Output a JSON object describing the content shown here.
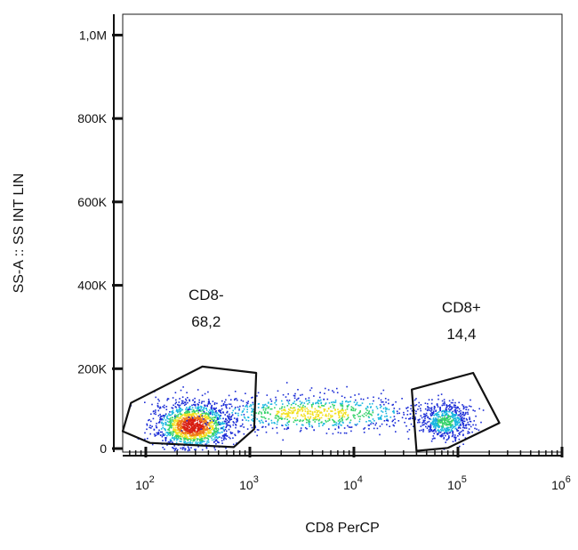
{
  "chart_data": {
    "type": "scatter",
    "title": "",
    "xlabel": "CD8 PerCP",
    "ylabel": "SS-A :: SS INT LIN",
    "x_scale": "log",
    "xlim": [
      60,
      1000000
    ],
    "ylim": [
      0,
      1050000
    ],
    "x_ticks": [
      {
        "value": 100,
        "label": "10",
        "exp": "2"
      },
      {
        "value": 1000,
        "label": "10",
        "exp": "3"
      },
      {
        "value": 10000,
        "label": "10",
        "exp": "4"
      },
      {
        "value": 100000,
        "label": "10",
        "exp": "5"
      },
      {
        "value": 1000000,
        "label": "10",
        "exp": "6"
      }
    ],
    "y_ticks": [
      {
        "value": 0,
        "label": "0"
      },
      {
        "value": 200000,
        "label": "200K"
      },
      {
        "value": 400000,
        "label": "400K"
      },
      {
        "value": 600000,
        "label": "600K"
      },
      {
        "value": 800000,
        "label": "800K"
      },
      {
        "value": 1000000,
        "label": "1,0M"
      }
    ],
    "grid": false,
    "legend": "none",
    "density_colors": [
      "#1a2bd6",
      "#19b7e0",
      "#35d26a",
      "#f2e01e",
      "#f07a18",
      "#d81e12"
    ],
    "populations": [
      {
        "center_x": 280,
        "center_y": 65000,
        "spread_log_x": 0.18,
        "spread_y": 28000,
        "count": 1500
      },
      {
        "center_x": 4000,
        "center_y": 95000,
        "spread_log_x": 0.55,
        "spread_y": 22000,
        "count": 900
      },
      {
        "center_x": 75000,
        "center_y": 75000,
        "spread_log_x": 0.12,
        "spread_y": 22000,
        "count": 600
      }
    ],
    "gates": [
      {
        "name": "CD8-",
        "value": "68,2",
        "vertices": [
          [
            72,
            118000
          ],
          [
            350,
            205000
          ],
          [
            1150,
            190000
          ],
          [
            1100,
            55000
          ],
          [
            700,
            12000
          ],
          [
            110,
            22000
          ],
          [
            60,
            50000
          ]
        ],
        "label_at": [
          380,
          365000
        ]
      },
      {
        "name": "CD8+",
        "value": "14,4",
        "vertices": [
          [
            36000,
            150000
          ],
          [
            140000,
            190000
          ],
          [
            250000,
            70000
          ],
          [
            80000,
            10000
          ],
          [
            40000,
            3000
          ]
        ],
        "label_at": [
          108000,
          335000
        ]
      }
    ]
  }
}
